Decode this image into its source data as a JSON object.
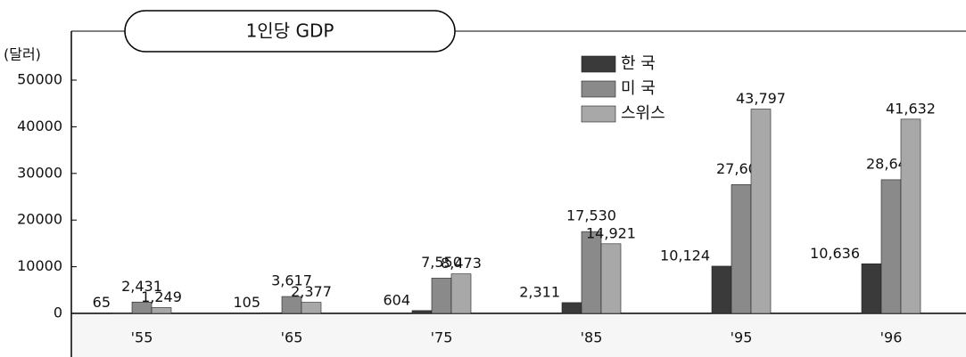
{
  "chart_data": {
    "type": "bar",
    "title": "1인당 GDP",
    "y_label": "(달러)",
    "categories": [
      "'55",
      "'65",
      "'75",
      "'85",
      "'95",
      "'96"
    ],
    "series": [
      {
        "name": "한 국",
        "color": "#3a3a3a",
        "values": [
          65,
          105,
          604,
          2311,
          10124,
          10636
        ],
        "value_labels": [
          "65",
          "105",
          "604",
          "2,311",
          "10,124",
          "10,636"
        ]
      },
      {
        "name": "미 국",
        "color": "#8a8a8a",
        "values": [
          2431,
          3617,
          7550,
          17530,
          27607,
          28646
        ],
        "value_labels": [
          "2,431",
          "3,617",
          "7,550",
          "17,530",
          "27,607",
          "28,646"
        ]
      },
      {
        "name": "스위스",
        "color": "#a8a8a8",
        "values": [
          1249,
          2377,
          8473,
          14921,
          43797,
          41632
        ],
        "value_labels": [
          "1,249",
          "2,377",
          "8,473",
          "14,921",
          "43,797",
          "41,632"
        ]
      }
    ],
    "ylim": [
      0,
      60000
    ],
    "yticks": [
      0,
      10000,
      20000,
      30000,
      40000,
      50000
    ],
    "legend": "top"
  }
}
